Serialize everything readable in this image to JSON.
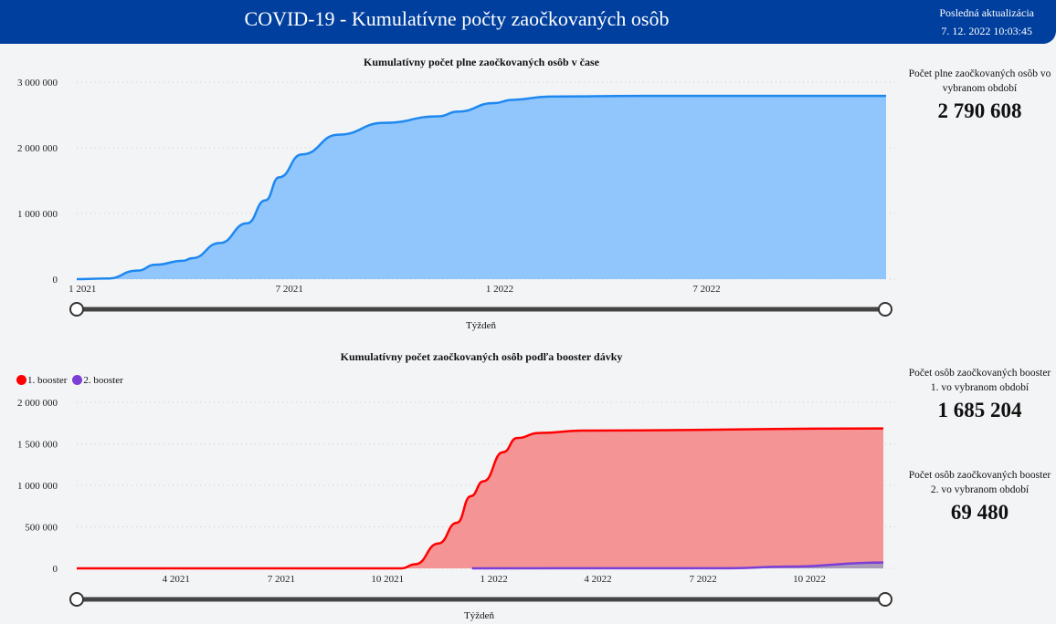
{
  "header": {
    "title": "COVID-19 - Kumulatívne počty zaočkovaných osôb",
    "update_label": "Posledná aktualizácia",
    "update_value": "7. 12. 2022 10:03:45"
  },
  "kpis": [
    {
      "label": "Počet plne zaočkovaných osôb vo vybranom období",
      "value": "2 790 608"
    },
    {
      "label": "Počet osôb zaočkovaných booster 1. vo vybranom období",
      "value": "1 685 204"
    },
    {
      "label": "Počet osôb zaočkovaných booster 2. vo vybranom období",
      "value": "69 480"
    }
  ],
  "chart_data": [
    {
      "type": "area",
      "title": "Kumulatívny počet plne zaočkovaných osôb v čase",
      "xlabel": "Týždeň",
      "ylabel": "",
      "ylim": [
        0,
        3000000
      ],
      "yticks": [
        "0",
        "1 000 000",
        "2 000 000",
        "3 000 000"
      ],
      "xticks": [
        "1 2021",
        "7 2021",
        "1 2022",
        "7 2022"
      ],
      "grid": true,
      "color": "#1e88f0",
      "fill": "#90c6fc",
      "series": [
        {
          "x": [
            "2020-12-27",
            "2021-01-23",
            "2021-02-18",
            "2021-03-06",
            "2021-03-30",
            "2021-04-07",
            "2021-05-01",
            "2021-05-25",
            "2021-06-10",
            "2021-06-22",
            "2021-07-12",
            "2021-08-13",
            "2021-09-22",
            "2021-11-09",
            "2021-11-25",
            "2021-12-27",
            "2022-01-12",
            "2022-02-13",
            "2022-05-04",
            "2022-12-05"
          ],
          "y": [
            0,
            10000,
            130000,
            220000,
            280000,
            320000,
            550000,
            850000,
            1200000,
            1550000,
            1900000,
            2200000,
            2380000,
            2480000,
            2550000,
            2680000,
            2730000,
            2780000,
            2790000,
            2790608
          ]
        }
      ]
    },
    {
      "type": "area",
      "title": "Kumulatívny počet zaočkovaných osôb podľa booster dávky",
      "xlabel": "Týždeň",
      "ylabel": "",
      "ylim": [
        0,
        2000000
      ],
      "yticks": [
        "0",
        "500 000",
        "1 000 000",
        "1 500 000",
        "2 000 000"
      ],
      "xticks": [
        "4 2021",
        "7 2021",
        "10 2021",
        "1 2022",
        "4 2022",
        "7 2022",
        "10 2022"
      ],
      "grid": true,
      "legend": "top-left",
      "series": [
        {
          "name": "1. booster",
          "color": "#ff0000",
          "fill": "#f59494",
          "x": [
            "2021-01-05",
            "2021-10-13",
            "2021-10-25",
            "2021-11-14",
            "2021-11-30",
            "2021-12-12",
            "2021-12-23",
            "2022-01-09",
            "2022-01-21",
            "2022-02-09",
            "2022-03-21",
            "2022-12-04"
          ],
          "y": [
            0,
            0,
            50000,
            300000,
            550000,
            870000,
            1050000,
            1400000,
            1570000,
            1630000,
            1660000,
            1685204
          ]
        },
        {
          "name": "2. booster",
          "color": "#7b3fd6",
          "fill": "#a89ab8",
          "x": [
            "2021-12-13",
            "2022-07-25",
            "2022-09-10",
            "2022-12-04"
          ],
          "y": [
            0,
            2000,
            20000,
            69480
          ]
        }
      ]
    }
  ],
  "slider_label": "Týždeň"
}
